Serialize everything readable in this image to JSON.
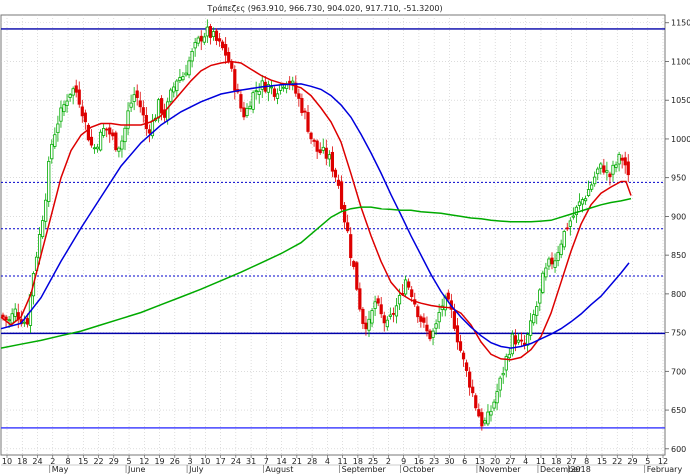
{
  "chart_data": {
    "type": "candlestick",
    "title": "Τράπεζες (963.910, 966.730, 904.020, 917.710, -51.3200)",
    "ylim": [
      592,
      1160
    ],
    "y_ticks": [
      600,
      650,
      700,
      750,
      800,
      850,
      900,
      950,
      1000,
      1050,
      1100,
      1150
    ],
    "x_day_ticks": [
      "10",
      "18",
      "24",
      "2",
      "8",
      "15",
      "22",
      "29",
      "5",
      "12",
      "19",
      "26",
      "3",
      "10",
      "17",
      "24",
      "31",
      "7",
      "14",
      "21",
      "28",
      "4",
      "11",
      "18",
      "25",
      "2",
      "9",
      "16",
      "23",
      "30",
      "6",
      "13",
      "20",
      "27",
      "4",
      "11",
      "18",
      "27",
      "8",
      "15",
      "22",
      "29",
      "5",
      "12"
    ],
    "x_month_labels": [
      "May",
      "June",
      "July",
      "August",
      "September",
      "October",
      "November",
      "December",
      "2018",
      "February"
    ],
    "horizontal_lines": [
      {
        "value": 1142,
        "style": "solid",
        "color": "#0000aa"
      },
      {
        "value": 944,
        "style": "dotted",
        "color": "#0000cc"
      },
      {
        "value": 884,
        "style": "dotted",
        "color": "#0000cc"
      },
      {
        "value": 823,
        "style": "dotted",
        "color": "#0000cc"
      },
      {
        "value": 749,
        "style": "solid",
        "color": "#0000aa"
      },
      {
        "value": 627,
        "style": "solid",
        "color": "#4444ff"
      }
    ],
    "candle_up_color": "#00aa00",
    "candle_down_color": "#dd0000",
    "ma_series": [
      {
        "color": "#dd0000",
        "points": [
          [
            0,
            770
          ],
          [
            10,
            760
          ],
          [
            20,
            770
          ],
          [
            30,
            800
          ],
          [
            40,
            850
          ],
          [
            50,
            900
          ],
          [
            60,
            950
          ],
          [
            70,
            985
          ],
          [
            80,
            1005
          ],
          [
            90,
            1015
          ],
          [
            100,
            1020
          ],
          [
            110,
            1020
          ],
          [
            120,
            1018
          ],
          [
            130,
            1018
          ],
          [
            140,
            1018
          ],
          [
            150,
            1022
          ],
          [
            160,
            1030
          ],
          [
            170,
            1045
          ],
          [
            180,
            1060
          ],
          [
            190,
            1075
          ],
          [
            200,
            1088
          ],
          [
            210,
            1095
          ],
          [
            220,
            1098
          ],
          [
            230,
            1100
          ],
          [
            240,
            1098
          ],
          [
            250,
            1090
          ],
          [
            260,
            1082
          ],
          [
            270,
            1076
          ],
          [
            280,
            1072
          ],
          [
            290,
            1070
          ],
          [
            300,
            1066
          ],
          [
            310,
            1056
          ],
          [
            320,
            1040
          ],
          [
            330,
            1022
          ],
          [
            340,
            996
          ],
          [
            350,
            955
          ],
          [
            360,
            912
          ],
          [
            370,
            875
          ],
          [
            380,
            842
          ],
          [
            390,
            815
          ],
          [
            400,
            800
          ],
          [
            410,
            792
          ],
          [
            420,
            788
          ],
          [
            430,
            785
          ],
          [
            440,
            783
          ],
          [
            450,
            782
          ],
          [
            460,
            775
          ],
          [
            470,
            760
          ],
          [
            480,
            738
          ],
          [
            490,
            722
          ],
          [
            500,
            716
          ],
          [
            510,
            715
          ],
          [
            520,
            718
          ],
          [
            530,
            728
          ],
          [
            540,
            745
          ],
          [
            550,
            775
          ],
          [
            560,
            815
          ],
          [
            570,
            855
          ],
          [
            580,
            890
          ],
          [
            590,
            915
          ],
          [
            600,
            930
          ],
          [
            610,
            938
          ],
          [
            620,
            945
          ],
          [
            625,
            945
          ],
          [
            630,
            927
          ]
        ]
      },
      {
        "color": "#0000dd",
        "points": [
          [
            0,
            755
          ],
          [
            20,
            762
          ],
          [
            40,
            795
          ],
          [
            60,
            842
          ],
          [
            80,
            885
          ],
          [
            100,
            925
          ],
          [
            120,
            965
          ],
          [
            140,
            995
          ],
          [
            160,
            1018
          ],
          [
            180,
            1035
          ],
          [
            200,
            1048
          ],
          [
            220,
            1058
          ],
          [
            240,
            1063
          ],
          [
            260,
            1067
          ],
          [
            280,
            1070
          ],
          [
            300,
            1071
          ],
          [
            310,
            1068
          ],
          [
            320,
            1064
          ],
          [
            330,
            1056
          ],
          [
            340,
            1044
          ],
          [
            350,
            1028
          ],
          [
            360,
            1006
          ],
          [
            370,
            982
          ],
          [
            380,
            956
          ],
          [
            390,
            928
          ],
          [
            400,
            902
          ],
          [
            410,
            875
          ],
          [
            420,
            850
          ],
          [
            430,
            825
          ],
          [
            440,
            803
          ],
          [
            450,
            785
          ],
          [
            460,
            770
          ],
          [
            470,
            757
          ],
          [
            480,
            746
          ],
          [
            490,
            737
          ],
          [
            500,
            732
          ],
          [
            510,
            730
          ],
          [
            520,
            732
          ],
          [
            530,
            736
          ],
          [
            540,
            742
          ],
          [
            550,
            748
          ],
          [
            560,
            755
          ],
          [
            570,
            764
          ],
          [
            580,
            774
          ],
          [
            590,
            786
          ],
          [
            600,
            797
          ],
          [
            610,
            812
          ],
          [
            620,
            827
          ],
          [
            628,
            840
          ]
        ]
      },
      {
        "color": "#00aa00",
        "points": [
          [
            0,
            730
          ],
          [
            20,
            735
          ],
          [
            40,
            740
          ],
          [
            60,
            746
          ],
          [
            80,
            752
          ],
          [
            100,
            760
          ],
          [
            120,
            768
          ],
          [
            140,
            776
          ],
          [
            160,
            786
          ],
          [
            180,
            796
          ],
          [
            200,
            806
          ],
          [
            220,
            817
          ],
          [
            240,
            828
          ],
          [
            260,
            840
          ],
          [
            280,
            852
          ],
          [
            300,
            866
          ],
          [
            310,
            877
          ],
          [
            320,
            888
          ],
          [
            330,
            899
          ],
          [
            340,
            906
          ],
          [
            350,
            910
          ],
          [
            360,
            912
          ],
          [
            370,
            912
          ],
          [
            380,
            910
          ],
          [
            390,
            909
          ],
          [
            400,
            908
          ],
          [
            410,
            908
          ],
          [
            420,
            906
          ],
          [
            430,
            905
          ],
          [
            440,
            904
          ],
          [
            450,
            902
          ],
          [
            460,
            900
          ],
          [
            470,
            898
          ],
          [
            480,
            897
          ],
          [
            490,
            895
          ],
          [
            500,
            894
          ],
          [
            510,
            893
          ],
          [
            520,
            893
          ],
          [
            530,
            893
          ],
          [
            540,
            894
          ],
          [
            550,
            895
          ],
          [
            560,
            899
          ],
          [
            570,
            903
          ],
          [
            580,
            907
          ],
          [
            590,
            911
          ],
          [
            600,
            915
          ],
          [
            610,
            918
          ],
          [
            620,
            920
          ],
          [
            630,
            923
          ]
        ]
      }
    ],
    "close_anchor_points": [
      [
        0,
        772
      ],
      [
        8,
        765
      ],
      [
        14,
        778
      ],
      [
        20,
        768
      ],
      [
        26,
        762
      ],
      [
        32,
        825
      ],
      [
        38,
        870
      ],
      [
        44,
        920
      ],
      [
        50,
        990
      ],
      [
        56,
        1020
      ],
      [
        62,
        1040
      ],
      [
        68,
        1060
      ],
      [
        74,
        1065
      ],
      [
        80,
        1045
      ],
      [
        86,
        1010
      ],
      [
        92,
        985
      ],
      [
        98,
        1000
      ],
      [
        104,
        1015
      ],
      [
        110,
        1005
      ],
      [
        116,
        990
      ],
      [
        122,
        1000
      ],
      [
        128,
        1040
      ],
      [
        134,
        1060
      ],
      [
        140,
        1040
      ],
      [
        146,
        1010
      ],
      [
        152,
        1022
      ],
      [
        158,
        1045
      ],
      [
        164,
        1030
      ],
      [
        170,
        1058
      ],
      [
        176,
        1078
      ],
      [
        182,
        1082
      ],
      [
        188,
        1100
      ],
      [
        194,
        1118
      ],
      [
        200,
        1132
      ],
      [
        206,
        1138
      ],
      [
        212,
        1132
      ],
      [
        218,
        1122
      ],
      [
        224,
        1112
      ],
      [
        228,
        1100
      ],
      [
        232,
        1078
      ],
      [
        236,
        1060
      ],
      [
        240,
        1040
      ],
      [
        244,
        1030
      ],
      [
        250,
        1054
      ],
      [
        256,
        1065
      ],
      [
        262,
        1070
      ],
      [
        268,
        1068
      ],
      [
        274,
        1062
      ],
      [
        280,
        1070
      ],
      [
        286,
        1078
      ],
      [
        292,
        1068
      ],
      [
        298,
        1050
      ],
      [
        304,
        1030
      ],
      [
        310,
        1002
      ],
      [
        316,
        985
      ],
      [
        322,
        982
      ],
      [
        328,
        975
      ],
      [
        334,
        955
      ],
      [
        338,
        940
      ],
      [
        342,
        905
      ],
      [
        346,
        885
      ],
      [
        350,
        850
      ],
      [
        354,
        825
      ],
      [
        358,
        790
      ],
      [
        362,
        765
      ],
      [
        368,
        760
      ],
      [
        374,
        790
      ],
      [
        380,
        772
      ],
      [
        386,
        758
      ],
      [
        392,
        775
      ],
      [
        398,
        790
      ],
      [
        404,
        820
      ],
      [
        410,
        805
      ],
      [
        416,
        780
      ],
      [
        422,
        760
      ],
      [
        428,
        745
      ],
      [
        434,
        752
      ],
      [
        440,
        785
      ],
      [
        446,
        790
      ],
      [
        452,
        770
      ],
      [
        458,
        735
      ],
      [
        464,
        705
      ],
      [
        470,
        680
      ],
      [
        476,
        650
      ],
      [
        482,
        630
      ],
      [
        488,
        642
      ],
      [
        494,
        665
      ],
      [
        500,
        690
      ],
      [
        506,
        720
      ],
      [
        512,
        745
      ],
      [
        518,
        735
      ],
      [
        524,
        732
      ],
      [
        530,
        760
      ],
      [
        536,
        785
      ],
      [
        542,
        820
      ],
      [
        548,
        838
      ],
      [
        554,
        846
      ],
      [
        560,
        868
      ],
      [
        566,
        888
      ],
      [
        572,
        900
      ],
      [
        578,
        915
      ],
      [
        584,
        926
      ],
      [
        590,
        940
      ],
      [
        596,
        958
      ],
      [
        602,
        965
      ],
      [
        608,
        950
      ],
      [
        614,
        965
      ],
      [
        620,
        978
      ],
      [
        626,
        962
      ],
      [
        630,
        918
      ]
    ]
  }
}
